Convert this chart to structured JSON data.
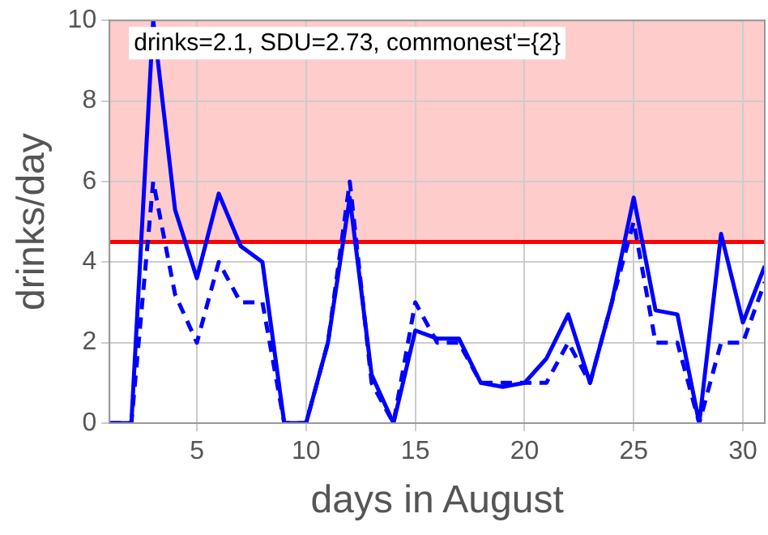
{
  "chart_data": {
    "type": "line",
    "xlabel": "days in August",
    "ylabel": "drinks/day",
    "x": [
      1,
      2,
      3,
      4,
      5,
      6,
      7,
      8,
      9,
      10,
      11,
      12,
      13,
      14,
      15,
      16,
      17,
      18,
      19,
      20,
      21,
      22,
      23,
      24,
      25,
      26,
      27,
      28,
      29,
      30,
      31
    ],
    "series": [
      {
        "color": "#0000ff",
        "line_style": "solid",
        "values": [
          0,
          0,
          10,
          5.3,
          3.6,
          5.7,
          4.4,
          4.0,
          0,
          0,
          2.0,
          5.6,
          1.2,
          0,
          2.3,
          2.1,
          2.1,
          1.0,
          0.9,
          1.0,
          1.6,
          2.7,
          1.0,
          3.0,
          5.6,
          2.8,
          2.7,
          0,
          4.7,
          2.5,
          3.9
        ]
      },
      {
        "color": "#0000ff",
        "line_style": "dashed",
        "values": [
          0,
          0,
          6,
          3.2,
          2.0,
          4.0,
          3.0,
          3.0,
          0,
          0,
          2,
          6,
          1,
          0,
          3,
          2,
          2,
          1,
          1,
          1,
          1,
          2,
          1,
          3,
          5,
          2,
          2,
          0,
          2,
          2,
          3.5
        ]
      }
    ],
    "xlim": [
      1,
      31
    ],
    "xticks": [
      5,
      10,
      15,
      20,
      25,
      30
    ],
    "ylim": [
      0,
      10
    ],
    "yticks": [
      0,
      2,
      4,
      6,
      8,
      10
    ],
    "grid": true,
    "marker": "none",
    "legend": false,
    "ref_lines": [
      {
        "axis": "y",
        "value": 4.5,
        "color": "#ff0000"
      }
    ],
    "bands": [
      {
        "axis": "y",
        "from": 4.5,
        "to": 10,
        "color": "#ffcccc"
      }
    ],
    "annotations": [
      "drinks=2.1, SDU=2.73, commonest'={2}"
    ]
  }
}
